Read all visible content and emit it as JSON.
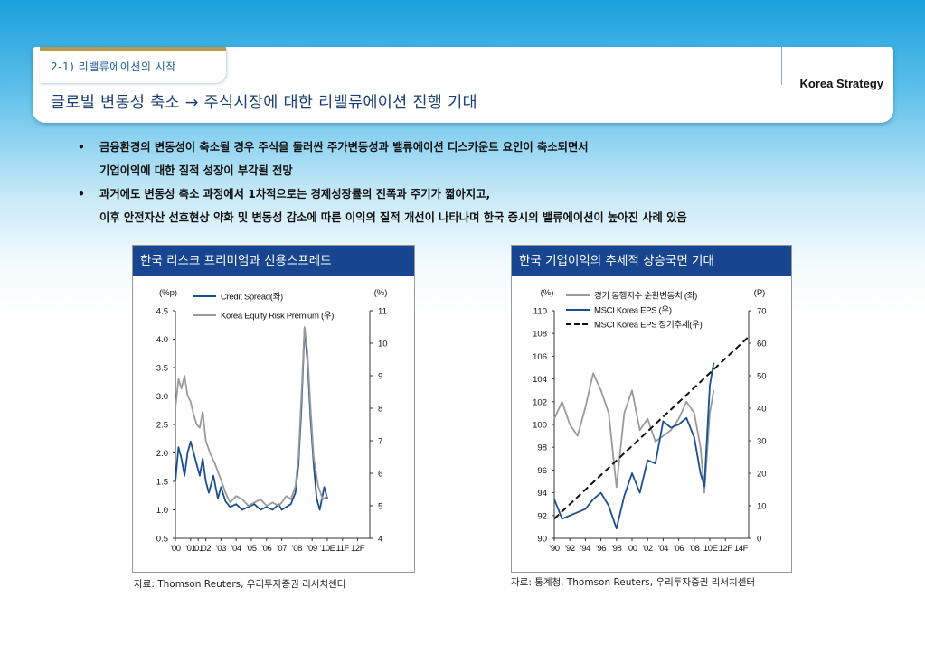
{
  "header": {
    "section_label": "2-1) 리밸류에이션의 시작",
    "title": "글로벌 변동성 축소 → 주식시장에 대한 리밸류에이션 진행 기대",
    "brand": "Korea Strategy"
  },
  "bullets": [
    {
      "line1": "금융환경의 변동성이 축소될 경우 주식을 둘러싼 주가변동성과 밸류에이션 디스카운트 요인이 축소되면서",
      "line2": "기업이익에 대한 질적 성장이 부각될 전망"
    },
    {
      "line1": "과거에도 변동성 축소 과정에서 1차적으로는 경제성장률의 진폭과 주기가 짧아지고,",
      "line2": "이후 안전자산 선호현상 약화 및 변동성 감소에 따른 이익의 질적 개선이 나타나며 한국 증시의 밸류에이션이 높아진 사례 있음"
    }
  ],
  "colors": {
    "credit": "#1a4f8f",
    "erp": "#9a9a9a",
    "trend": "#111111",
    "panel_title_bg": "#17458f"
  },
  "chart_data": [
    {
      "panel_title": "한국 리스크 프리미엄과 신용스프레드",
      "type": "line",
      "left_unit": "(%p)",
      "right_unit": "(%)",
      "ylim_left": [
        0.5,
        4.5
      ],
      "yticks_left": [
        "4.5",
        "4.0",
        "3.5",
        "3.0",
        "2.5",
        "2.0",
        "1.5",
        "1.0",
        "0.5"
      ],
      "ylim_right": [
        4,
        11
      ],
      "yticks_right": [
        "11",
        "10",
        "9",
        "8",
        "7",
        "6",
        "5",
        "4"
      ],
      "xlim": [
        2000,
        2012.8
      ],
      "xtick_labels": [
        "'00",
        "'01",
        "'01",
        "'02",
        "'03",
        "'04",
        "'05",
        "'06",
        "'07",
        "'08",
        "'09",
        "'10E",
        "11F",
        "12F"
      ],
      "xtick_positions": [
        2000,
        2001,
        2001.5,
        2002,
        2003,
        2004,
        2005,
        2006,
        2007,
        2008,
        2009,
        2010,
        2011,
        2012
      ],
      "series": [
        {
          "name": "Credit Spread(좌)",
          "axis": "left",
          "color": "#1a4f8f",
          "x": [
            2000,
            2000.2,
            2000.4,
            2000.6,
            2000.8,
            2001,
            2001.2,
            2001.4,
            2001.6,
            2001.8,
            2002,
            2002.2,
            2002.5,
            2002.8,
            2003,
            2003.3,
            2003.6,
            2004,
            2004.4,
            2004.8,
            2005.2,
            2005.6,
            2006,
            2006.4,
            2006.8,
            2007,
            2007.3,
            2007.6,
            2007.9,
            2008.1,
            2008.3,
            2008.5,
            2008.7,
            2008.9,
            2009.1,
            2009.3,
            2009.5,
            2009.8,
            2010
          ],
          "y": [
            1.5,
            2.1,
            1.9,
            1.6,
            2.0,
            2.2,
            2.0,
            1.8,
            1.6,
            1.9,
            1.5,
            1.3,
            1.6,
            1.2,
            1.4,
            1.15,
            1.05,
            1.1,
            1.0,
            1.05,
            1.1,
            1.0,
            1.05,
            1.0,
            1.1,
            1.0,
            1.05,
            1.1,
            1.3,
            1.8,
            2.8,
            4.2,
            3.6,
            2.6,
            1.8,
            1.2,
            1.0,
            1.4,
            1.2
          ]
        },
        {
          "name": "Korea Equity Risk Premium (우)",
          "axis": "right",
          "color": "#9a9a9a",
          "x": [
            2000,
            2000.2,
            2000.4,
            2000.6,
            2000.8,
            2001,
            2001.2,
            2001.4,
            2001.6,
            2001.8,
            2002,
            2002.3,
            2002.6,
            2003,
            2003.3,
            2003.6,
            2004,
            2004.4,
            2004.8,
            2005.2,
            2005.6,
            2006,
            2006.4,
            2006.8,
            2007,
            2007.3,
            2007.6,
            2007.9,
            2008.1,
            2008.3,
            2008.5,
            2008.7,
            2008.9,
            2009.1,
            2009.4,
            2009.7,
            2010
          ],
          "y": [
            8.0,
            8.9,
            8.6,
            9.0,
            8.4,
            8.2,
            7.8,
            7.5,
            7.4,
            7.9,
            7.0,
            6.6,
            6.3,
            5.8,
            5.4,
            5.1,
            5.3,
            5.2,
            5.0,
            5.1,
            5.2,
            5.0,
            5.1,
            5.0,
            5.1,
            5.3,
            5.2,
            5.6,
            6.5,
            8.4,
            10.5,
            9.7,
            8.0,
            6.5,
            5.6,
            5.2,
            5.3
          ]
        }
      ],
      "source": "자료: Thomson Reuters, 우리투자증권 리서치센터"
    },
    {
      "panel_title": "한국 기업이익의 추세적 상승국면 기대",
      "type": "line",
      "left_unit": "(%)",
      "right_unit": "(P)",
      "ylim_left": [
        90,
        110
      ],
      "yticks_left": [
        "110",
        "108",
        "106",
        "104",
        "102",
        "100",
        "98",
        "96",
        "94",
        "92",
        "90"
      ],
      "ylim_right": [
        0,
        70
      ],
      "yticks_right": [
        "70",
        "60",
        "50",
        "40",
        "30",
        "20",
        "10",
        "0"
      ],
      "xlim": [
        1990,
        2015
      ],
      "xtick_labels": [
        "'90",
        "'92",
        "'94",
        "'96",
        "'98",
        "'00",
        "'02",
        "'04",
        "'06",
        "'08",
        "'10E",
        "12F",
        "14F"
      ],
      "xtick_positions": [
        1990,
        1992,
        1994,
        1996,
        1998,
        2000,
        2002,
        2004,
        2006,
        2008,
        2010,
        2012,
        2014
      ],
      "series": [
        {
          "name": "경기 동행지수 순환변동치 (좌)",
          "axis": "left",
          "color": "#9a9a9a",
          "x": [
            1990,
            1991,
            1992,
            1993,
            1994,
            1995,
            1996,
            1997,
            1998,
            1999,
            2000,
            2001,
            2002,
            2003,
            2004,
            2005,
            2006,
            2007,
            2008,
            2008.8,
            2009.3,
            2010,
            2010.5
          ],
          "y": [
            100.5,
            102,
            100,
            99,
            101.5,
            104.5,
            103,
            101,
            94.5,
            101,
            103,
            99.5,
            100.5,
            98.5,
            99,
            99.5,
            100.5,
            102,
            101,
            98,
            94,
            101,
            103
          ]
        },
        {
          "name": "MSCI Korea EPS (우)",
          "axis": "right",
          "color": "#1a4f8f",
          "x": [
            1990,
            1991,
            1992,
            1993,
            1994,
            1995,
            1996,
            1997,
            1998,
            1999,
            2000,
            2001,
            2002,
            2003,
            2004,
            2005,
            2006,
            2007,
            2008,
            2008.8,
            2009.3,
            2010,
            2010.5
          ],
          "y": [
            12,
            6,
            7,
            8,
            9,
            12,
            14,
            10,
            3,
            13,
            20,
            14,
            24,
            23,
            36,
            34,
            35,
            37,
            31,
            20,
            16,
            47,
            54
          ]
        },
        {
          "name": "MSCI Korea EPS 장기추세(우)",
          "axis": "right",
          "color": "#111111",
          "dashed": true,
          "x": [
            1990,
            2015
          ],
          "y": [
            6,
            62
          ]
        }
      ],
      "source": "자료: 통계청, Thomson Reuters, 우리투자증권 리서치센터"
    }
  ]
}
